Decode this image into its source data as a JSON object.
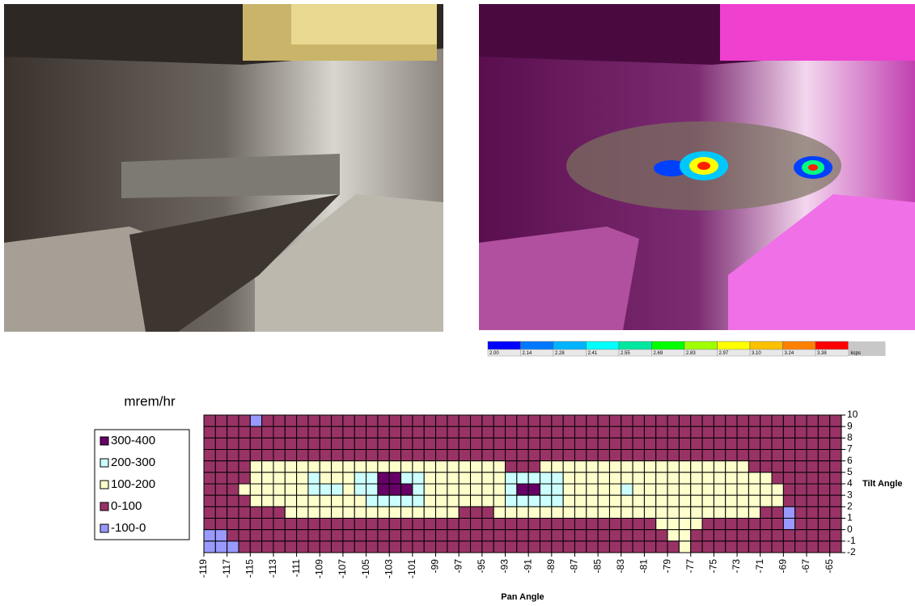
{
  "colorbar": {
    "ticks": [
      {
        "value": 2.0,
        "label": "2.00"
      },
      {
        "value": 2.14,
        "label": "2.14"
      },
      {
        "value": 2.28,
        "label": "2.28"
      },
      {
        "value": 2.41,
        "label": "2.41"
      },
      {
        "value": 2.55,
        "label": "2.55"
      },
      {
        "value": 2.69,
        "label": "2.69"
      },
      {
        "value": 2.83,
        "label": "2.83"
      },
      {
        "value": 2.97,
        "label": "2.97"
      },
      {
        "value": 3.1,
        "label": "3.10"
      },
      {
        "value": 3.24,
        "label": "3.24"
      },
      {
        "value": 3.38,
        "label": "3.38"
      }
    ],
    "colors": [
      "#0000ff",
      "#0078ff",
      "#00b4ff",
      "#00ffff",
      "#00e8a0",
      "#00ff00",
      "#a0ff00",
      "#ffff00",
      "#ffc000",
      "#ff8000",
      "#ff0000"
    ],
    "unit": "kcps"
  },
  "chart_data": {
    "type": "contour",
    "legend_title": "mrem/hr",
    "levels": [
      {
        "name": "300-400",
        "min": 300,
        "max": 400,
        "color": "#660066"
      },
      {
        "name": "200-300",
        "min": 200,
        "max": 300,
        "color": "#ccffff"
      },
      {
        "name": "100-200",
        "min": 100,
        "max": 200,
        "color": "#ffffcc"
      },
      {
        "name": "0-100",
        "min": 0,
        "max": 100,
        "color": "#993366"
      },
      {
        "name": "-100-0",
        "min": -100,
        "max": 0,
        "color": "#9999ff"
      }
    ],
    "x_label": "Pan Angle",
    "y_label": "Tilt Angle",
    "xlim": [
      -119,
      -64
    ],
    "ylim": [
      -2,
      10
    ],
    "xticks": [
      -119,
      -117,
      -115,
      -113,
      -111,
      -109,
      -107,
      -105,
      -103,
      -101,
      -99,
      -97,
      -95,
      -93,
      -91,
      -89,
      -87,
      -85,
      -83,
      -81,
      -79,
      -77,
      -75,
      -73,
      -71,
      -69,
      -67,
      -65
    ],
    "yticks": [
      -2,
      -1,
      0,
      1,
      2,
      3,
      4,
      5,
      6,
      7,
      8,
      9,
      10
    ],
    "x": [
      -118.5,
      -117.5,
      -116.5,
      -115.5,
      -114.5,
      -113.5,
      -112.5,
      -111.5,
      -110.5,
      -109.5,
      -108.5,
      -107.5,
      -106.5,
      -105.5,
      -104.5,
      -103.5,
      -102.5,
      -101.5,
      -100.5,
      -99.5,
      -98.5,
      -97.5,
      -96.5,
      -95.5,
      -94.5,
      -93.5,
      -92.5,
      -91.5,
      -90.5,
      -89.5,
      -88.5,
      -87.5,
      -86.5,
      -85.5,
      -84.5,
      -83.5,
      -82.5,
      -81.5,
      -80.5,
      -79.5,
      -78.5,
      -77.5,
      -76.5,
      -75.5,
      -74.5,
      -73.5,
      -72.5,
      -71.5,
      -70.5,
      -69.5,
      -68.5,
      -67.5,
      -66.5,
      -65.5,
      -64.5
    ],
    "y": [
      9.5,
      8.5,
      7.5,
      6.5,
      5.5,
      4.5,
      3.5,
      2.5,
      1.5,
      0.5,
      -0.5,
      -1.5
    ],
    "z": [
      [
        50,
        50,
        50,
        50,
        -50,
        50,
        50,
        50,
        50,
        50,
        50,
        50,
        50,
        50,
        50,
        50,
        50,
        50,
        50,
        50,
        50,
        50,
        50,
        50,
        50,
        50,
        50,
        50,
        50,
        50,
        50,
        50,
        50,
        50,
        50,
        50,
        50,
        50,
        50,
        50,
        50,
        50,
        50,
        50,
        50,
        50,
        50,
        50,
        50,
        50,
        50,
        50,
        50,
        50,
        50
      ],
      [
        50,
        50,
        50,
        50,
        50,
        50,
        50,
        50,
        50,
        50,
        50,
        50,
        50,
        50,
        50,
        50,
        50,
        50,
        50,
        50,
        50,
        50,
        50,
        50,
        50,
        50,
        50,
        50,
        50,
        50,
        50,
        50,
        50,
        50,
        50,
        50,
        50,
        50,
        50,
        50,
        50,
        50,
        50,
        50,
        50,
        50,
        50,
        50,
        50,
        50,
        50,
        50,
        50,
        50,
        50
      ],
      [
        50,
        50,
        50,
        50,
        50,
        50,
        50,
        50,
        50,
        50,
        50,
        50,
        50,
        50,
        50,
        50,
        50,
        50,
        50,
        50,
        50,
        50,
        50,
        50,
        50,
        50,
        50,
        50,
        50,
        50,
        50,
        50,
        50,
        50,
        50,
        50,
        50,
        50,
        50,
        50,
        50,
        50,
        50,
        50,
        50,
        50,
        50,
        50,
        50,
        50,
        50,
        50,
        50,
        50,
        50
      ],
      [
        50,
        50,
        50,
        50,
        50,
        50,
        50,
        50,
        50,
        50,
        50,
        50,
        50,
        50,
        50,
        50,
        50,
        50,
        50,
        50,
        50,
        50,
        50,
        50,
        50,
        50,
        50,
        50,
        50,
        50,
        50,
        50,
        50,
        50,
        50,
        50,
        50,
        50,
        50,
        50,
        50,
        50,
        50,
        50,
        50,
        50,
        50,
        50,
        50,
        50,
        50,
        50,
        50,
        50,
        50
      ],
      [
        50,
        50,
        50,
        50,
        150,
        150,
        150,
        150,
        150,
        150,
        150,
        150,
        150,
        150,
        150,
        150,
        150,
        150,
        150,
        150,
        150,
        150,
        150,
        150,
        150,
        150,
        50,
        50,
        50,
        150,
        150,
        150,
        150,
        150,
        150,
        150,
        150,
        150,
        150,
        150,
        150,
        150,
        150,
        150,
        150,
        150,
        150,
        50,
        50,
        50,
        50,
        50,
        50,
        50,
        50
      ],
      [
        50,
        50,
        50,
        50,
        150,
        150,
        150,
        150,
        150,
        250,
        150,
        150,
        150,
        250,
        250,
        350,
        350,
        250,
        250,
        150,
        150,
        150,
        150,
        150,
        150,
        150,
        250,
        250,
        250,
        250,
        250,
        150,
        150,
        150,
        150,
        150,
        150,
        150,
        150,
        150,
        150,
        150,
        150,
        150,
        150,
        150,
        150,
        150,
        150,
        50,
        50,
        50,
        50,
        50,
        50
      ],
      [
        50,
        50,
        50,
        150,
        150,
        150,
        150,
        150,
        150,
        250,
        250,
        250,
        150,
        250,
        250,
        350,
        350,
        350,
        250,
        150,
        150,
        150,
        150,
        150,
        150,
        150,
        250,
        350,
        350,
        250,
        250,
        150,
        150,
        150,
        150,
        150,
        250,
        150,
        150,
        150,
        150,
        150,
        150,
        150,
        150,
        150,
        150,
        150,
        150,
        150,
        50,
        50,
        50,
        50,
        50
      ],
      [
        50,
        50,
        50,
        50,
        150,
        150,
        150,
        150,
        150,
        150,
        150,
        150,
        150,
        150,
        250,
        250,
        250,
        250,
        250,
        150,
        150,
        150,
        150,
        150,
        150,
        150,
        250,
        250,
        250,
        250,
        250,
        150,
        150,
        150,
        150,
        150,
        150,
        150,
        150,
        150,
        150,
        150,
        150,
        150,
        150,
        150,
        150,
        150,
        150,
        150,
        50,
        50,
        50,
        50,
        50
      ],
      [
        50,
        50,
        50,
        50,
        50,
        50,
        50,
        150,
        150,
        150,
        150,
        150,
        150,
        150,
        150,
        150,
        150,
        150,
        150,
        150,
        150,
        150,
        50,
        50,
        50,
        150,
        150,
        150,
        150,
        150,
        150,
        150,
        150,
        150,
        150,
        150,
        150,
        150,
        150,
        150,
        150,
        150,
        150,
        150,
        150,
        150,
        150,
        150,
        50,
        50,
        -50,
        50,
        50,
        50,
        50
      ],
      [
        50,
        50,
        50,
        50,
        50,
        50,
        50,
        50,
        50,
        50,
        50,
        50,
        50,
        50,
        50,
        50,
        50,
        50,
        50,
        50,
        50,
        50,
        50,
        50,
        50,
        50,
        50,
        50,
        50,
        50,
        50,
        50,
        50,
        50,
        50,
        50,
        50,
        50,
        50,
        150,
        150,
        150,
        150,
        50,
        50,
        50,
        50,
        50,
        50,
        50,
        -50,
        50,
        50,
        50,
        50
      ],
      [
        -50,
        -50,
        50,
        50,
        50,
        50,
        50,
        50,
        50,
        50,
        50,
        50,
        50,
        50,
        50,
        50,
        50,
        50,
        50,
        50,
        50,
        50,
        50,
        50,
        50,
        50,
        50,
        50,
        50,
        50,
        50,
        50,
        50,
        50,
        50,
        50,
        50,
        50,
        50,
        50,
        150,
        150,
        50,
        50,
        50,
        50,
        50,
        50,
        50,
        50,
        50,
        50,
        50,
        50,
        50
      ],
      [
        -50,
        -50,
        -50,
        50,
        50,
        50,
        50,
        50,
        50,
        50,
        50,
        50,
        50,
        50,
        50,
        50,
        50,
        50,
        50,
        50,
        50,
        50,
        50,
        50,
        50,
        50,
        50,
        50,
        50,
        50,
        50,
        50,
        50,
        50,
        50,
        50,
        50,
        50,
        50,
        50,
        50,
        150,
        50,
        50,
        50,
        50,
        50,
        50,
        50,
        50,
        50,
        50,
        50,
        50,
        50
      ]
    ]
  }
}
